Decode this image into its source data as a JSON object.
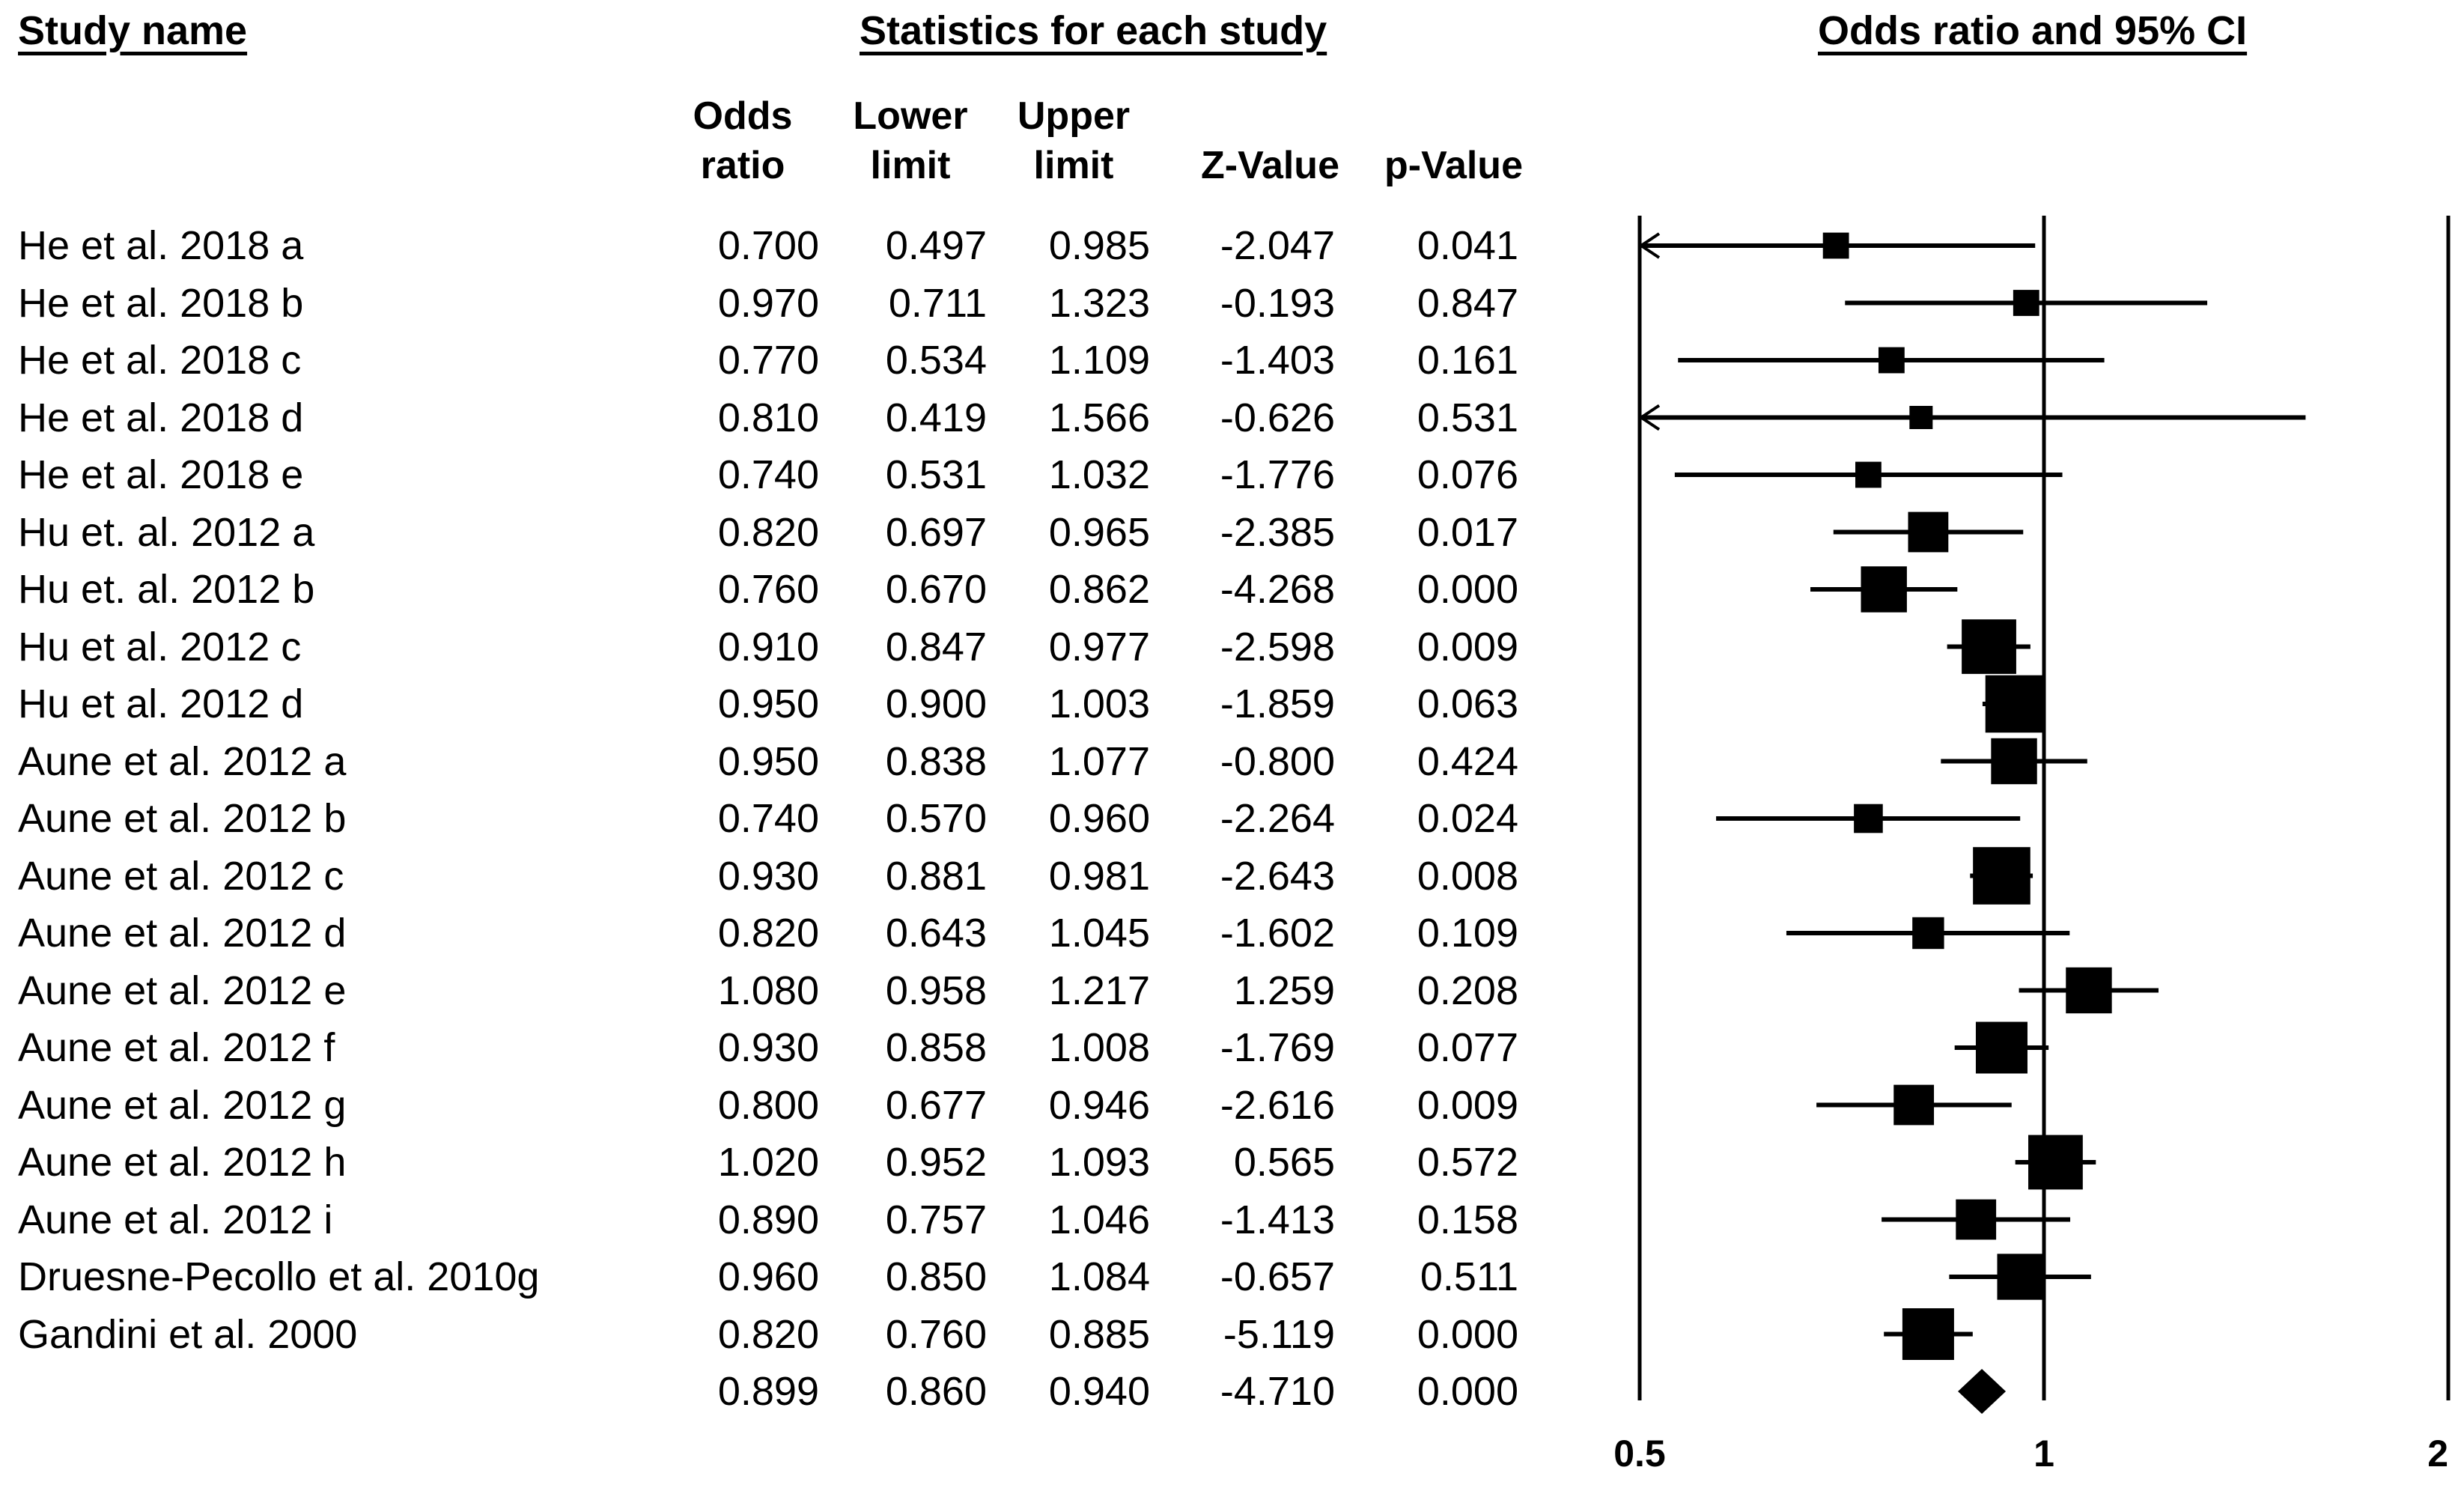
{
  "headers": {
    "study_name": "Study name",
    "statistics": "Statistics for each study",
    "plot": "Odds ratio and 95% CI",
    "columns": [
      {
        "line1": "Odds",
        "line2": "ratio"
      },
      {
        "line1": "Lower",
        "line2": "limit"
      },
      {
        "line1": "Upper",
        "line2": "limit"
      },
      {
        "line1": "",
        "line2": "Z-Value"
      },
      {
        "line1": "",
        "line2": "p-Value"
      }
    ]
  },
  "rows": [
    {
      "name": "He et  al. 2018 a",
      "or": "0.700",
      "lower": "0.497",
      "upper": "0.985",
      "z": "-2.047",
      "p": "0.041"
    },
    {
      "name": "He et  al. 2018 b",
      "or": "0.970",
      "lower": "0.711",
      "upper": "1.323",
      "z": "-0.193",
      "p": "0.847"
    },
    {
      "name": "He et  al. 2018 c",
      "or": "0.770",
      "lower": "0.534",
      "upper": "1.109",
      "z": "-1.403",
      "p": "0.161"
    },
    {
      "name": "He et  al. 2018 d",
      "or": "0.810",
      "lower": "0.419",
      "upper": "1.566",
      "z": "-0.626",
      "p": "0.531"
    },
    {
      "name": "He et  al. 2018 e",
      "or": "0.740",
      "lower": "0.531",
      "upper": "1.032",
      "z": "-1.776",
      "p": "0.076"
    },
    {
      "name": "Hu et. al. 2012 a",
      "or": "0.820",
      "lower": "0.697",
      "upper": "0.965",
      "z": "-2.385",
      "p": "0.017"
    },
    {
      "name": "Hu et. al. 2012 b",
      "or": "0.760",
      "lower": "0.670",
      "upper": "0.862",
      "z": "-4.268",
      "p": "0.000"
    },
    {
      "name": "Hu et  al. 2012 c",
      "or": "0.910",
      "lower": "0.847",
      "upper": "0.977",
      "z": "-2.598",
      "p": "0.009"
    },
    {
      "name": "Hu et  al. 2012 d",
      "or": "0.950",
      "lower": "0.900",
      "upper": "1.003",
      "z": "-1.859",
      "p": "0.063"
    },
    {
      "name": "Aune et  al. 2012 a",
      "or": "0.950",
      "lower": "0.838",
      "upper": "1.077",
      "z": "-0.800",
      "p": "0.424"
    },
    {
      "name": "Aune et  al. 2012 b",
      "or": "0.740",
      "lower": "0.570",
      "upper": "0.960",
      "z": "-2.264",
      "p": "0.024"
    },
    {
      "name": "Aune et  al. 2012 c",
      "or": "0.930",
      "lower": "0.881",
      "upper": "0.981",
      "z": "-2.643",
      "p": "0.008"
    },
    {
      "name": "Aune et  al. 2012 d",
      "or": "0.820",
      "lower": "0.643",
      "upper": "1.045",
      "z": "-1.602",
      "p": "0.109"
    },
    {
      "name": "Aune et  al. 2012 e",
      "or": "1.080",
      "lower": "0.958",
      "upper": "1.217",
      "z": "1.259",
      "p": "0.208"
    },
    {
      "name": "Aune et  al. 2012 f",
      "or": "0.930",
      "lower": "0.858",
      "upper": "1.008",
      "z": "-1.769",
      "p": "0.077"
    },
    {
      "name": "Aune et  al. 2012 g",
      "or": "0.800",
      "lower": "0.677",
      "upper": "0.946",
      "z": "-2.616",
      "p": "0.009"
    },
    {
      "name": "Aune et  al. 2012 h",
      "or": "1.020",
      "lower": "0.952",
      "upper": "1.093",
      "z": "0.565",
      "p": "0.572"
    },
    {
      "name": "Aune et  al. 2012 i",
      "or": "0.890",
      "lower": "0.757",
      "upper": "1.046",
      "z": "-1.413",
      "p": "0.158"
    },
    {
      "name": "Druesne-Pecollo et al. 2010g",
      "or": "0.960",
      "lower": "0.850",
      "upper": "1.084",
      "z": "-0.657",
      "p": "0.511"
    },
    {
      "name": "Gandini et  al. 2000",
      "or": "0.820",
      "lower": "0.760",
      "upper": "0.885",
      "z": "-5.119",
      "p": "0.000"
    },
    {
      "name": "",
      "or": "0.899",
      "lower": "0.860",
      "upper": "0.940",
      "z": "-4.710",
      "p": "0.000"
    }
  ],
  "chart_data": {
    "type": "forest",
    "scale": "log",
    "xlim": [
      0.5,
      2
    ],
    "xticks": [
      "0.5",
      "1",
      "2"
    ],
    "reference_line": 1,
    "studies": [
      {
        "or": 0.7,
        "lower": 0.497,
        "upper": 0.985,
        "weight": 0.6
      },
      {
        "or": 0.97,
        "lower": 0.711,
        "upper": 1.323,
        "weight": 0.6
      },
      {
        "or": 0.77,
        "lower": 0.534,
        "upper": 1.109,
        "weight": 0.6
      },
      {
        "or": 0.81,
        "lower": 0.419,
        "upper": 1.566,
        "weight": 0.5
      },
      {
        "or": 0.74,
        "lower": 0.531,
        "upper": 1.032,
        "weight": 0.6
      },
      {
        "or": 0.82,
        "lower": 0.697,
        "upper": 0.965,
        "weight": 1.1
      },
      {
        "or": 0.76,
        "lower": 0.67,
        "upper": 0.862,
        "weight": 1.3
      },
      {
        "or": 0.91,
        "lower": 0.847,
        "upper": 0.977,
        "weight": 1.6
      },
      {
        "or": 0.95,
        "lower": 0.9,
        "upper": 1.003,
        "weight": 1.7
      },
      {
        "or": 0.95,
        "lower": 0.838,
        "upper": 1.077,
        "weight": 1.3
      },
      {
        "or": 0.74,
        "lower": 0.57,
        "upper": 0.96,
        "weight": 0.7
      },
      {
        "or": 0.93,
        "lower": 0.881,
        "upper": 0.981,
        "weight": 1.7
      },
      {
        "or": 0.82,
        "lower": 0.643,
        "upper": 1.045,
        "weight": 0.8
      },
      {
        "or": 1.08,
        "lower": 0.958,
        "upper": 1.217,
        "weight": 1.3
      },
      {
        "or": 0.93,
        "lower": 0.858,
        "upper": 1.008,
        "weight": 1.5
      },
      {
        "or": 0.8,
        "lower": 0.677,
        "upper": 0.946,
        "weight": 1.1
      },
      {
        "or": 1.02,
        "lower": 0.952,
        "upper": 1.093,
        "weight": 1.6
      },
      {
        "or": 0.89,
        "lower": 0.757,
        "upper": 1.046,
        "weight": 1.1
      },
      {
        "or": 0.96,
        "lower": 0.85,
        "upper": 1.084,
        "weight": 1.3
      },
      {
        "or": 0.82,
        "lower": 0.76,
        "upper": 0.885,
        "weight": 1.5
      }
    ],
    "summary": {
      "or": 0.899,
      "lower": 0.86,
      "upper": 0.94
    }
  }
}
